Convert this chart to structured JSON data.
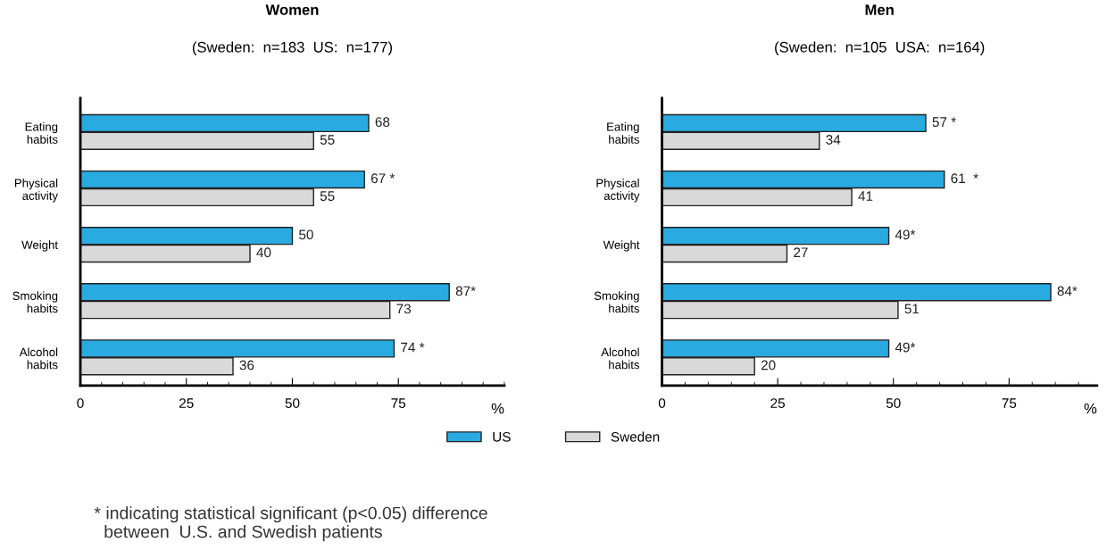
{
  "chart_data": [
    {
      "type": "bar",
      "orientation": "horizontal",
      "title": "Women",
      "subtitle": "(Sweden:  n=183  US:  n=177)",
      "xlabel": "%",
      "categories": [
        "Eating\nhabits",
        "Physical\nactivity",
        "Weight",
        "Smoking\nhabits",
        "Alcohol\nhabits"
      ],
      "series": [
        {
          "name": "US",
          "color": "#29abe2",
          "values": [
            68,
            67,
            50,
            87,
            74
          ],
          "value_labels": [
            "68",
            "67 *",
            "50",
            "87*",
            "74 *"
          ]
        },
        {
          "name": "Sweden",
          "color": "#d9d9d9",
          "values": [
            55,
            55,
            40,
            73,
            36
          ],
          "value_labels": [
            "55",
            "55",
            "40",
            "73",
            "36"
          ]
        }
      ],
      "xlim": [
        0,
        100
      ],
      "xticks": [
        0,
        25,
        50,
        75
      ],
      "legend": "bottom",
      "grid": false,
      "annotations": [
        "* indicating statistical significant (p<0.05) difference\n  between  U.S. and Swedish patients"
      ]
    },
    {
      "type": "bar",
      "orientation": "horizontal",
      "title": "Men",
      "subtitle": "(Sweden:  n=105  USA:  n=164)",
      "xlabel": "%",
      "categories": [
        "Eating\nhabits",
        "Physical\nactivity",
        "Weight",
        "Smoking\nhabits",
        "Alcohol\nhabits"
      ],
      "series": [
        {
          "color": "#29abe2",
          "values": [
            57,
            61,
            49,
            84,
            49
          ],
          "value_labels": [
            "57 *",
            "61  *",
            "49*",
            "84*",
            "49*"
          ]
        },
        {
          "color": "#d9d9d9",
          "values": [
            34,
            41,
            27,
            51,
            20
          ],
          "value_labels": [
            "34",
            "41",
            "27",
            "51",
            "20"
          ]
        }
      ],
      "xlim": [
        0,
        94
      ],
      "xticks": [
        0,
        25,
        50,
        75
      ],
      "grid": false
    }
  ]
}
